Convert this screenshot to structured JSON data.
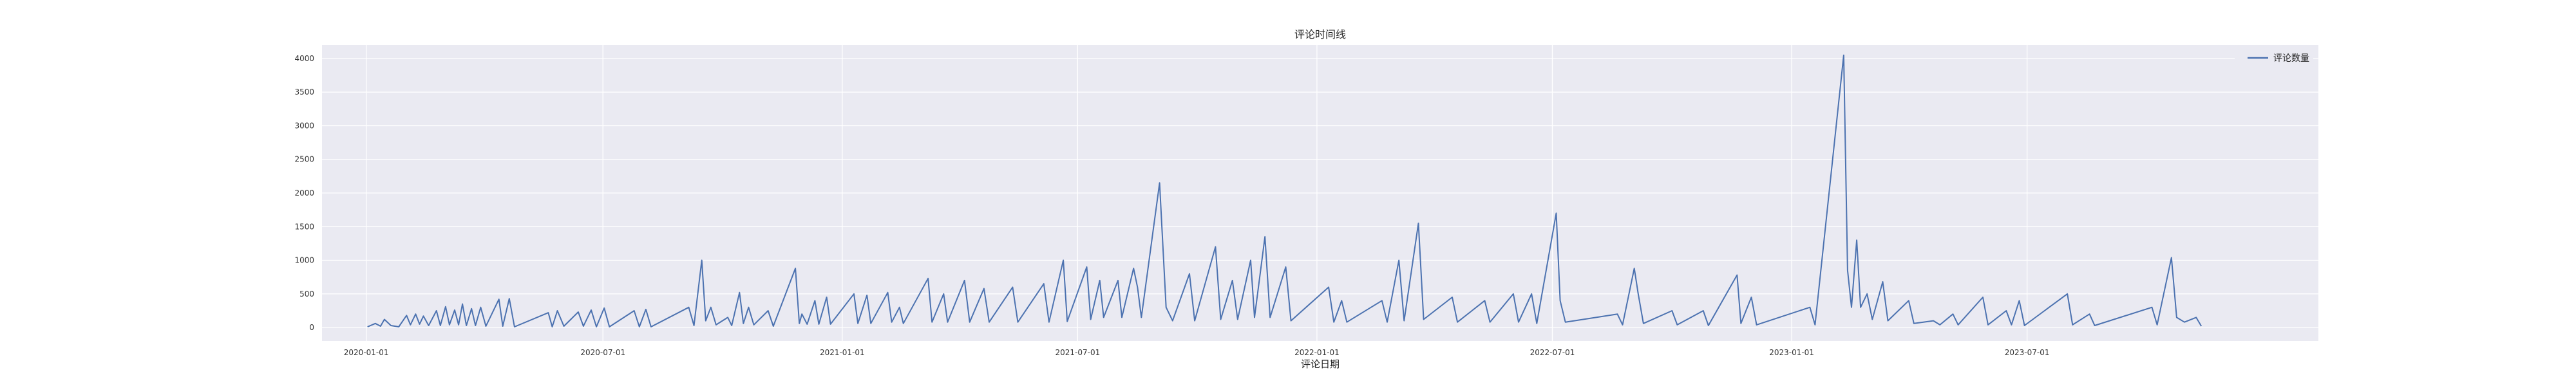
{
  "chart_data": {
    "type": "line",
    "title": "评论时间线",
    "xlabel": "评论日期",
    "ylabel": "",
    "x_axis_type": "date",
    "xlim": [
      "2019-11-28",
      "2024-02-10"
    ],
    "ylim": [
      -200,
      4200
    ],
    "x_ticks": [
      "2020-01-01",
      "2020-07-01",
      "2021-01-01",
      "2021-07-01",
      "2022-01-01",
      "2022-07-01",
      "2023-01-01",
      "2023-07-01"
    ],
    "y_ticks": [
      0,
      500,
      1000,
      1500,
      2000,
      2500,
      3000,
      3500,
      4000
    ],
    "grid": true,
    "legend_position": "top-right",
    "colors": {
      "line": "#4c72b0",
      "plot_bg": "#eaeaf2",
      "grid": "#ffffff"
    },
    "series": [
      {
        "name": "评论数量",
        "points": [
          [
            "2020-01-02",
            10
          ],
          [
            "2020-01-08",
            60
          ],
          [
            "2020-01-12",
            20
          ],
          [
            "2020-01-15",
            120
          ],
          [
            "2020-01-20",
            30
          ],
          [
            "2020-01-26",
            10
          ],
          [
            "2020-02-01",
            180
          ],
          [
            "2020-02-04",
            40
          ],
          [
            "2020-02-08",
            200
          ],
          [
            "2020-02-11",
            50
          ],
          [
            "2020-02-14",
            170
          ],
          [
            "2020-02-18",
            30
          ],
          [
            "2020-02-24",
            250
          ],
          [
            "2020-02-27",
            30
          ],
          [
            "2020-03-02",
            310
          ],
          [
            "2020-03-05",
            40
          ],
          [
            "2020-03-09",
            260
          ],
          [
            "2020-03-12",
            40
          ],
          [
            "2020-03-15",
            350
          ],
          [
            "2020-03-18",
            30
          ],
          [
            "2020-03-22",
            280
          ],
          [
            "2020-03-25",
            30
          ],
          [
            "2020-03-29",
            300
          ],
          [
            "2020-04-02",
            20
          ],
          [
            "2020-04-12",
            420
          ],
          [
            "2020-04-15",
            20
          ],
          [
            "2020-04-20",
            430
          ],
          [
            "2020-04-24",
            10
          ],
          [
            "2020-05-20",
            220
          ],
          [
            "2020-05-23",
            10
          ],
          [
            "2020-05-27",
            250
          ],
          [
            "2020-06-01",
            20
          ],
          [
            "2020-06-12",
            230
          ],
          [
            "2020-06-16",
            20
          ],
          [
            "2020-06-22",
            260
          ],
          [
            "2020-06-26",
            10
          ],
          [
            "2020-07-02",
            290
          ],
          [
            "2020-07-06",
            10
          ],
          [
            "2020-07-25",
            250
          ],
          [
            "2020-07-29",
            10
          ],
          [
            "2020-08-03",
            270
          ],
          [
            "2020-08-07",
            10
          ],
          [
            "2020-09-05",
            300
          ],
          [
            "2020-09-09",
            30
          ],
          [
            "2020-09-15",
            1000
          ],
          [
            "2020-09-18",
            100
          ],
          [
            "2020-09-22",
            300
          ],
          [
            "2020-09-26",
            40
          ],
          [
            "2020-10-05",
            150
          ],
          [
            "2020-10-08",
            30
          ],
          [
            "2020-10-14",
            520
          ],
          [
            "2020-10-17",
            60
          ],
          [
            "2020-10-21",
            300
          ],
          [
            "2020-10-25",
            40
          ],
          [
            "2020-11-05",
            250
          ],
          [
            "2020-11-09",
            20
          ],
          [
            "2020-11-26",
            880
          ],
          [
            "2020-11-29",
            60
          ],
          [
            "2020-12-01",
            200
          ],
          [
            "2020-12-05",
            50
          ],
          [
            "2020-12-11",
            400
          ],
          [
            "2020-12-14",
            50
          ],
          [
            "2020-12-20",
            450
          ],
          [
            "2020-12-23",
            50
          ],
          [
            "2021-01-10",
            500
          ],
          [
            "2021-01-13",
            60
          ],
          [
            "2021-01-20",
            480
          ],
          [
            "2021-01-23",
            60
          ],
          [
            "2021-02-05",
            520
          ],
          [
            "2021-02-08",
            80
          ],
          [
            "2021-02-14",
            300
          ],
          [
            "2021-02-17",
            60
          ],
          [
            "2021-03-08",
            730
          ],
          [
            "2021-03-11",
            80
          ],
          [
            "2021-03-20",
            500
          ],
          [
            "2021-03-23",
            80
          ],
          [
            "2021-04-05",
            700
          ],
          [
            "2021-04-09",
            80
          ],
          [
            "2021-04-20",
            580
          ],
          [
            "2021-04-24",
            80
          ],
          [
            "2021-05-12",
            600
          ],
          [
            "2021-05-16",
            80
          ],
          [
            "2021-06-05",
            650
          ],
          [
            "2021-06-09",
            80
          ],
          [
            "2021-06-20",
            1000
          ],
          [
            "2021-06-23",
            90
          ],
          [
            "2021-07-08",
            900
          ],
          [
            "2021-07-11",
            120
          ],
          [
            "2021-07-18",
            700
          ],
          [
            "2021-07-21",
            150
          ],
          [
            "2021-08-01",
            700
          ],
          [
            "2021-08-04",
            150
          ],
          [
            "2021-08-13",
            880
          ],
          [
            "2021-08-16",
            600
          ],
          [
            "2021-08-19",
            150
          ],
          [
            "2021-09-02",
            2150
          ],
          [
            "2021-09-07",
            300
          ],
          [
            "2021-09-12",
            100
          ],
          [
            "2021-09-25",
            800
          ],
          [
            "2021-09-29",
            100
          ],
          [
            "2021-10-15",
            1200
          ],
          [
            "2021-10-19",
            120
          ],
          [
            "2021-10-28",
            700
          ],
          [
            "2021-11-01",
            120
          ],
          [
            "2021-11-11",
            1000
          ],
          [
            "2021-11-14",
            150
          ],
          [
            "2021-11-22",
            1350
          ],
          [
            "2021-11-26",
            150
          ],
          [
            "2021-12-08",
            900
          ],
          [
            "2021-12-12",
            100
          ],
          [
            "2022-01-10",
            600
          ],
          [
            "2022-01-14",
            80
          ],
          [
            "2022-01-20",
            400
          ],
          [
            "2022-01-24",
            80
          ],
          [
            "2022-02-20",
            400
          ],
          [
            "2022-02-24",
            80
          ],
          [
            "2022-03-05",
            1000
          ],
          [
            "2022-03-09",
            100
          ],
          [
            "2022-03-20",
            1550
          ],
          [
            "2022-03-24",
            120
          ],
          [
            "2022-04-15",
            450
          ],
          [
            "2022-04-19",
            80
          ],
          [
            "2022-05-10",
            400
          ],
          [
            "2022-05-14",
            80
          ],
          [
            "2022-06-01",
            500
          ],
          [
            "2022-06-05",
            80
          ],
          [
            "2022-06-15",
            500
          ],
          [
            "2022-06-19",
            60
          ],
          [
            "2022-07-04",
            1700
          ],
          [
            "2022-07-07",
            400
          ],
          [
            "2022-07-11",
            80
          ],
          [
            "2022-08-20",
            200
          ],
          [
            "2022-08-24",
            40
          ],
          [
            "2022-09-02",
            880
          ],
          [
            "2022-09-05",
            500
          ],
          [
            "2022-09-09",
            60
          ],
          [
            "2022-10-01",
            250
          ],
          [
            "2022-10-05",
            40
          ],
          [
            "2022-10-25",
            250
          ],
          [
            "2022-10-29",
            30
          ],
          [
            "2022-11-20",
            780
          ],
          [
            "2022-11-23",
            60
          ],
          [
            "2022-12-01",
            450
          ],
          [
            "2022-12-05",
            40
          ],
          [
            "2023-01-15",
            300
          ],
          [
            "2023-01-19",
            40
          ],
          [
            "2023-02-10",
            4050
          ],
          [
            "2023-02-13",
            850
          ],
          [
            "2023-02-16",
            300
          ],
          [
            "2023-02-20",
            1300
          ],
          [
            "2023-02-23",
            300
          ],
          [
            "2023-02-28",
            500
          ],
          [
            "2023-03-04",
            120
          ],
          [
            "2023-03-12",
            680
          ],
          [
            "2023-03-16",
            100
          ],
          [
            "2023-04-01",
            400
          ],
          [
            "2023-04-05",
            60
          ],
          [
            "2023-04-20",
            100
          ],
          [
            "2023-04-25",
            40
          ],
          [
            "2023-05-05",
            200
          ],
          [
            "2023-05-09",
            40
          ],
          [
            "2023-05-28",
            450
          ],
          [
            "2023-06-01",
            40
          ],
          [
            "2023-06-15",
            250
          ],
          [
            "2023-06-19",
            40
          ],
          [
            "2023-06-25",
            400
          ],
          [
            "2023-06-29",
            30
          ],
          [
            "2023-08-01",
            500
          ],
          [
            "2023-08-05",
            40
          ],
          [
            "2023-08-18",
            200
          ],
          [
            "2023-08-22",
            30
          ],
          [
            "2023-10-05",
            300
          ],
          [
            "2023-10-09",
            40
          ],
          [
            "2023-10-20",
            1040
          ],
          [
            "2023-10-24",
            150
          ],
          [
            "2023-10-30",
            80
          ],
          [
            "2023-11-08",
            150
          ],
          [
            "2023-11-12",
            20
          ]
        ]
      }
    ]
  }
}
